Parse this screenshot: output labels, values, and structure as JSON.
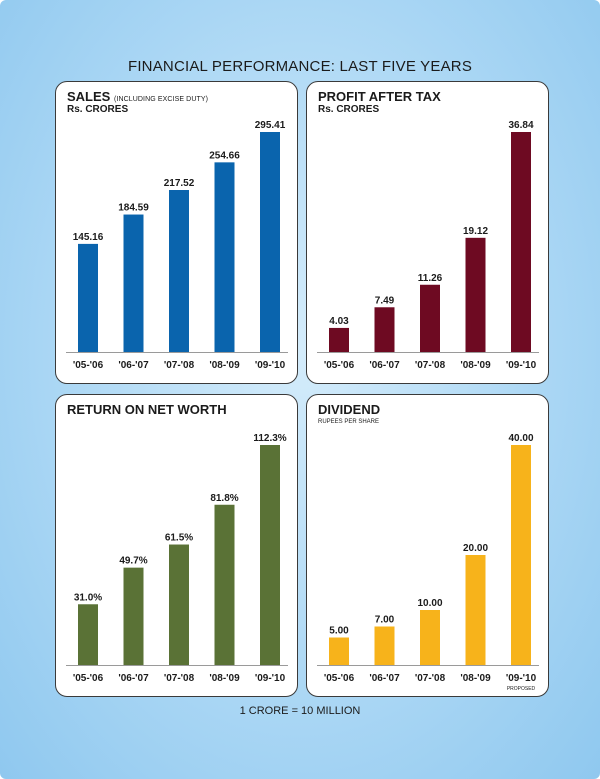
{
  "page": {
    "title": "FINANCIAL PERFORMANCE: LAST FIVE YEARS",
    "footnote": "1 CRORE = 10 MILLION"
  },
  "panels": [
    {
      "title": "SALES",
      "title_note": "(INCLUDING EXCISE DUTY)",
      "subtitle": "Rs. CRORES",
      "color": "#0a64ad"
    },
    {
      "title": "PROFIT AFTER TAX",
      "title_note": "",
      "subtitle": "Rs. CRORES",
      "color": "#6e0a22"
    },
    {
      "title": "RETURN ON NET WORTH",
      "title_note": "",
      "subtitle": "",
      "color": "#5a7236"
    },
    {
      "title": "DIVIDEND",
      "title_note": "",
      "subtitle": "RUPEES PER SHARE",
      "color": "#f7b31b"
    }
  ],
  "chart_data": [
    {
      "type": "bar",
      "title": "SALES (INCLUDING EXCISE DUTY)",
      "ylabel": "Rs. CRORES",
      "categories": [
        "'05-'06",
        "'06-'07",
        "'07-'08",
        "'08-'09",
        "'09-'10"
      ],
      "values": [
        145.16,
        184.59,
        217.52,
        254.66,
        295.41
      ],
      "labels": [
        "145.16",
        "184.59",
        "217.52",
        "254.66",
        "295.41"
      ],
      "ylim": [
        0,
        295.41
      ],
      "color": "#0a64ad"
    },
    {
      "type": "bar",
      "title": "PROFIT AFTER TAX",
      "ylabel": "Rs. CRORES",
      "categories": [
        "'05-'06",
        "'06-'07",
        "'07-'08",
        "'08-'09",
        "'09-'10"
      ],
      "values": [
        4.03,
        7.49,
        11.26,
        19.12,
        36.84
      ],
      "labels": [
        "4.03",
        "7.49",
        "11.26",
        "19.12",
        "36.84"
      ],
      "ylim": [
        0,
        36.84
      ],
      "color": "#6e0a22"
    },
    {
      "type": "bar",
      "title": "RETURN ON NET WORTH",
      "ylabel": "",
      "categories": [
        "'05-'06",
        "'06-'07",
        "'07-'08",
        "'08-'09",
        "'09-'10"
      ],
      "values": [
        31.0,
        49.7,
        61.5,
        81.8,
        112.3
      ],
      "labels": [
        "31.0%",
        "49.7%",
        "61.5%",
        "81.8%",
        "112.3%"
      ],
      "ylim": [
        0,
        112.3
      ],
      "color": "#5a7236"
    },
    {
      "type": "bar",
      "title": "DIVIDEND",
      "ylabel": "RUPEES PER SHARE",
      "categories": [
        "'05-'06",
        "'06-'07",
        "'07-'08",
        "'08-'09",
        "'09-'10"
      ],
      "values": [
        5.0,
        7.0,
        10.0,
        20.0,
        40.0
      ],
      "labels": [
        "5.00",
        "7.00",
        "10.00",
        "20.00",
        "40.00"
      ],
      "category_notes": [
        "",
        "",
        "",
        "",
        "PROPOSED"
      ],
      "ylim": [
        0,
        40.0
      ],
      "color": "#f7b31b"
    }
  ]
}
